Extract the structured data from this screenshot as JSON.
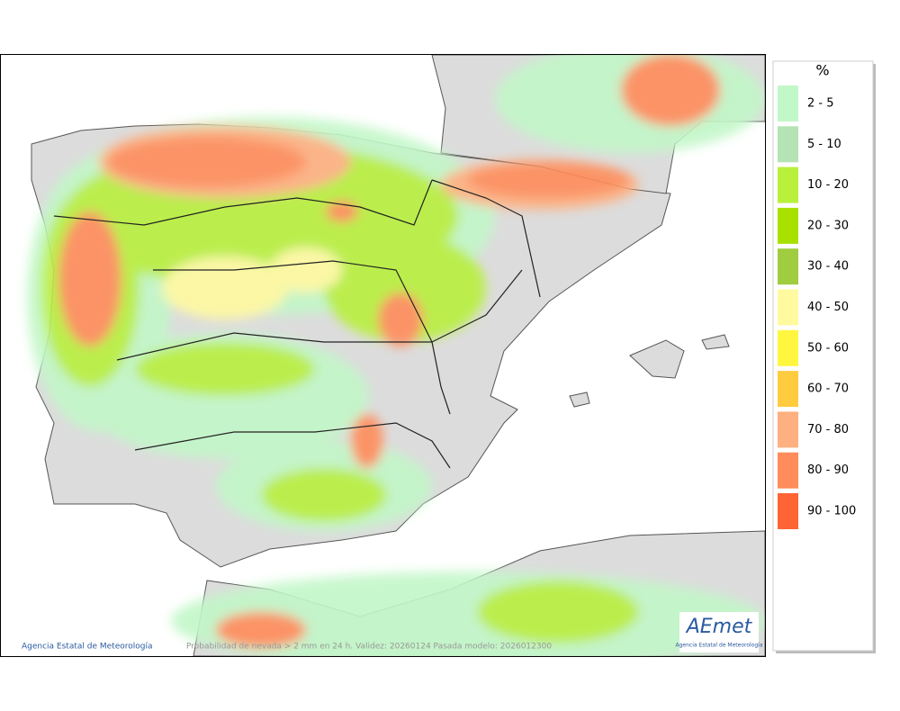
{
  "legend": {
    "title": "%",
    "items": [
      {
        "label": "2 - 5",
        "color": "#c2f7c8"
      },
      {
        "label": "5 - 10",
        "color": "#b4e3b4"
      },
      {
        "label": "10 - 20",
        "color": "#b8f03c"
      },
      {
        "label": "20 - 30",
        "color": "#a8e000"
      },
      {
        "label": "30 - 40",
        "color": "#a0cc40"
      },
      {
        "label": "40 - 50",
        "color": "#fffaa0"
      },
      {
        "label": "50 - 60",
        "color": "#fff640"
      },
      {
        "label": "60 - 70",
        "color": "#ffcc40"
      },
      {
        "label": "70 - 80",
        "color": "#ffb080"
      },
      {
        "label": "80 - 90",
        "color": "#ff8c5a"
      },
      {
        "label": "90 - 100",
        "color": "#ff6434"
      }
    ]
  },
  "credit": "Agencia Estatal de Meteorología",
  "caption": "Probabilidad de nevada > 2 mm en 24 h. Validez: 20260124 Pasada modelo: 2026012300",
  "logo": {
    "name": "AEmet",
    "subtitle": "Agencia Estatal de Meteorología"
  }
}
